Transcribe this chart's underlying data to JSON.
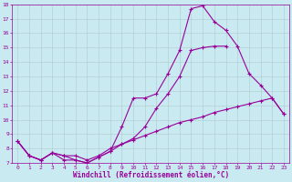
{
  "line1_x": [
    0,
    1,
    2,
    3,
    4,
    5,
    6,
    7,
    8,
    9,
    10,
    11,
    12,
    13,
    14,
    15,
    16,
    17,
    18,
    19,
    20,
    21,
    22,
    23
  ],
  "line1_y": [
    8.5,
    7.5,
    7.2,
    7.7,
    7.2,
    7.2,
    7.0,
    7.4,
    7.8,
    9.5,
    11.5,
    11.5,
    11.8,
    13.2,
    14.8,
    17.7,
    17.9,
    16.8,
    16.2,
    15.1,
    13.2,
    12.4,
    11.5,
    10.4
  ],
  "line2_x": [
    0,
    1,
    2,
    3,
    4,
    5,
    6,
    7,
    8,
    9,
    10,
    11,
    12,
    13,
    14,
    15,
    16,
    17,
    18
  ],
  "line2_y": [
    8.5,
    7.5,
    7.2,
    7.7,
    7.5,
    7.2,
    7.0,
    7.4,
    7.8,
    8.3,
    8.7,
    9.5,
    10.8,
    11.8,
    13.0,
    14.8,
    15.0,
    15.1,
    15.1
  ],
  "line3_x": [
    0,
    1,
    2,
    3,
    4,
    5,
    6,
    7,
    8,
    9,
    10,
    11,
    12,
    13,
    14,
    15,
    16,
    17,
    18,
    19,
    20,
    21,
    22,
    23
  ],
  "line3_y": [
    8.5,
    7.5,
    7.2,
    7.7,
    7.5,
    7.5,
    7.2,
    7.5,
    8.0,
    8.3,
    8.6,
    8.9,
    9.2,
    9.5,
    9.8,
    10.0,
    10.2,
    10.5,
    10.7,
    10.9,
    11.1,
    11.3,
    11.5,
    10.4
  ],
  "line_color": "#990099",
  "bg_color": "#c8eaf0",
  "grid_color": "#b0c8d0",
  "xlabel": "Windchill (Refroidissement éolien,°C)",
  "xlabel_color": "#990099",
  "tick_color": "#990099",
  "xlim": [
    -0.5,
    23.5
  ],
  "ylim": [
    7,
    18
  ],
  "yticks": [
    7,
    8,
    9,
    10,
    11,
    12,
    13,
    14,
    15,
    16,
    17,
    18
  ],
  "xticks": [
    0,
    1,
    2,
    3,
    4,
    5,
    6,
    7,
    8,
    9,
    10,
    11,
    12,
    13,
    14,
    15,
    16,
    17,
    18,
    19,
    20,
    21,
    22,
    23
  ],
  "marker": "+",
  "linewidth": 0.8,
  "markersize": 3.5,
  "markeredgewidth": 0.8
}
